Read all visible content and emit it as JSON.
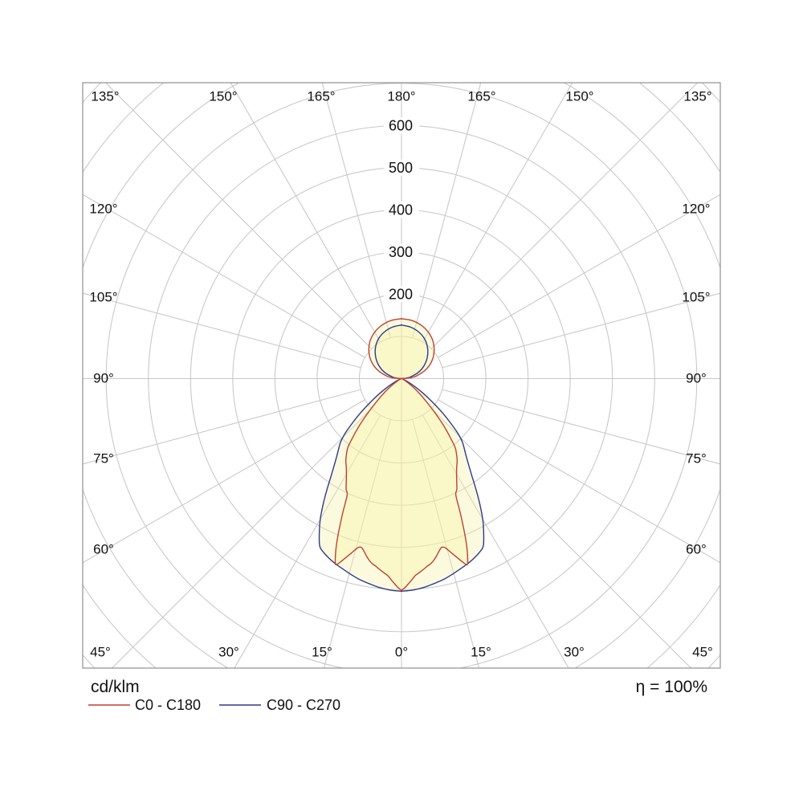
{
  "page": {
    "unit": "cd/klm",
    "efficiency": "η = 100%"
  },
  "legend": [
    {
      "label": "C0 - C180",
      "color": "#bf4130"
    },
    {
      "label": "C90 - C270",
      "color": "#2b3a91"
    }
  ],
  "axis": {
    "ring_labels": [
      "200",
      "300",
      "400",
      "500",
      "600"
    ],
    "top_labels": [
      "135°",
      "150°",
      "165°",
      "180°",
      "165°",
      "150°",
      "135°"
    ],
    "left_labels": [
      "120°",
      "105°",
      "90°",
      "75°",
      "60°"
    ],
    "right_labels": [
      "120°",
      "105°",
      "90°",
      "75°",
      "60°"
    ],
    "bottom_labels": [
      "45°",
      "30°",
      "15°",
      "0°",
      "15°",
      "30°",
      "45°"
    ]
  },
  "colors": {
    "grid": "#c9c9c9",
    "border": "#8f8f8f",
    "fill": "#f5f0a0",
    "fill_opacity": 0.35,
    "label_bg": "#ffffff"
  },
  "chart_data": {
    "type": "polar-photometric",
    "unit": "cd/klm",
    "efficiency_percent": 100,
    "ring_step": 100,
    "ring_labeled_values": [
      200,
      300,
      400,
      500,
      600
    ],
    "grid": {
      "ray_step_deg": 15,
      "ring_values": [
        100,
        200,
        300,
        400,
        500,
        600,
        700,
        800,
        900,
        1000,
        1100
      ]
    },
    "angle_convention": "gamma measured from nadir (0° = straight down); curves symmetric left/right",
    "series": [
      {
        "name": "C0 - C180",
        "color": "#bf4130",
        "symmetric": true,
        "lower_lobe": [
          [
            0,
            502
          ],
          [
            1,
            495
          ],
          [
            2,
            486
          ],
          [
            3,
            477
          ],
          [
            4,
            468
          ],
          [
            5,
            463
          ],
          [
            6,
            458
          ],
          [
            7,
            453
          ],
          [
            8,
            448
          ],
          [
            9,
            444
          ],
          [
            10,
            438
          ],
          [
            11,
            430
          ],
          [
            12,
            421
          ],
          [
            13,
            413
          ],
          [
            13.5,
            411
          ],
          [
            14.5,
            414
          ],
          [
            16,
            430
          ],
          [
            17.5,
            447
          ],
          [
            18.5,
            459
          ],
          [
            19.4,
            468
          ],
          [
            20,
            459
          ],
          [
            21,
            434
          ],
          [
            22,
            403
          ],
          [
            23.5,
            352
          ],
          [
            25,
            305
          ],
          [
            26.5,
            294
          ],
          [
            28,
            279
          ],
          [
            30,
            261
          ],
          [
            32,
            247
          ],
          [
            34,
            236
          ],
          [
            36,
            222
          ],
          [
            38,
            206
          ],
          [
            40,
            176
          ],
          [
            42,
            148
          ],
          [
            44,
            119
          ],
          [
            46,
            93
          ],
          [
            48,
            73
          ],
          [
            50,
            58
          ],
          [
            53,
            38
          ],
          [
            56,
            22
          ],
          [
            60,
            11
          ],
          [
            65,
            5
          ],
          [
            70,
            3
          ],
          [
            75,
            2
          ],
          [
            80,
            1
          ],
          [
            90,
            0
          ]
        ],
        "upper_lobe": [
          [
            0,
            142
          ],
          [
            10,
            140
          ],
          [
            20,
            135
          ],
          [
            30,
            127
          ],
          [
            40,
            116
          ],
          [
            50,
            101
          ],
          [
            60,
            83
          ],
          [
            70,
            61
          ],
          [
            80,
            36
          ],
          [
            85,
            20
          ],
          [
            90,
            0
          ]
        ]
      },
      {
        "name": "C90 - C270",
        "color": "#2b3a91",
        "symmetric": true,
        "lower_lobe": [
          [
            0,
            504
          ],
          [
            3,
            502
          ],
          [
            6,
            498
          ],
          [
            9,
            492
          ],
          [
            12,
            486
          ],
          [
            15,
            478
          ],
          [
            18,
            470
          ],
          [
            20,
            465
          ],
          [
            22,
            459
          ],
          [
            24,
            452
          ],
          [
            26,
            442
          ],
          [
            28,
            415
          ],
          [
            30,
            385
          ],
          [
            32,
            350
          ],
          [
            34,
            315
          ],
          [
            36,
            283
          ],
          [
            38,
            258
          ],
          [
            40,
            238
          ],
          [
            42,
            222
          ],
          [
            44,
            207
          ],
          [
            46,
            184
          ],
          [
            48,
            155
          ],
          [
            50,
            128
          ],
          [
            52,
            102
          ],
          [
            54,
            80
          ],
          [
            56,
            61
          ],
          [
            58,
            45
          ],
          [
            60,
            32
          ],
          [
            63,
            18
          ],
          [
            66,
            10
          ],
          [
            70,
            5
          ],
          [
            75,
            3
          ],
          [
            80,
            2
          ],
          [
            90,
            0
          ]
        ],
        "upper_lobe": [
          [
            0,
            127
          ],
          [
            10,
            124
          ],
          [
            20,
            118
          ],
          [
            30,
            109
          ],
          [
            40,
            96
          ],
          [
            50,
            80
          ],
          [
            60,
            62
          ],
          [
            70,
            42
          ],
          [
            80,
            21
          ],
          [
            85,
            10
          ],
          [
            90,
            0
          ]
        ]
      }
    ]
  }
}
